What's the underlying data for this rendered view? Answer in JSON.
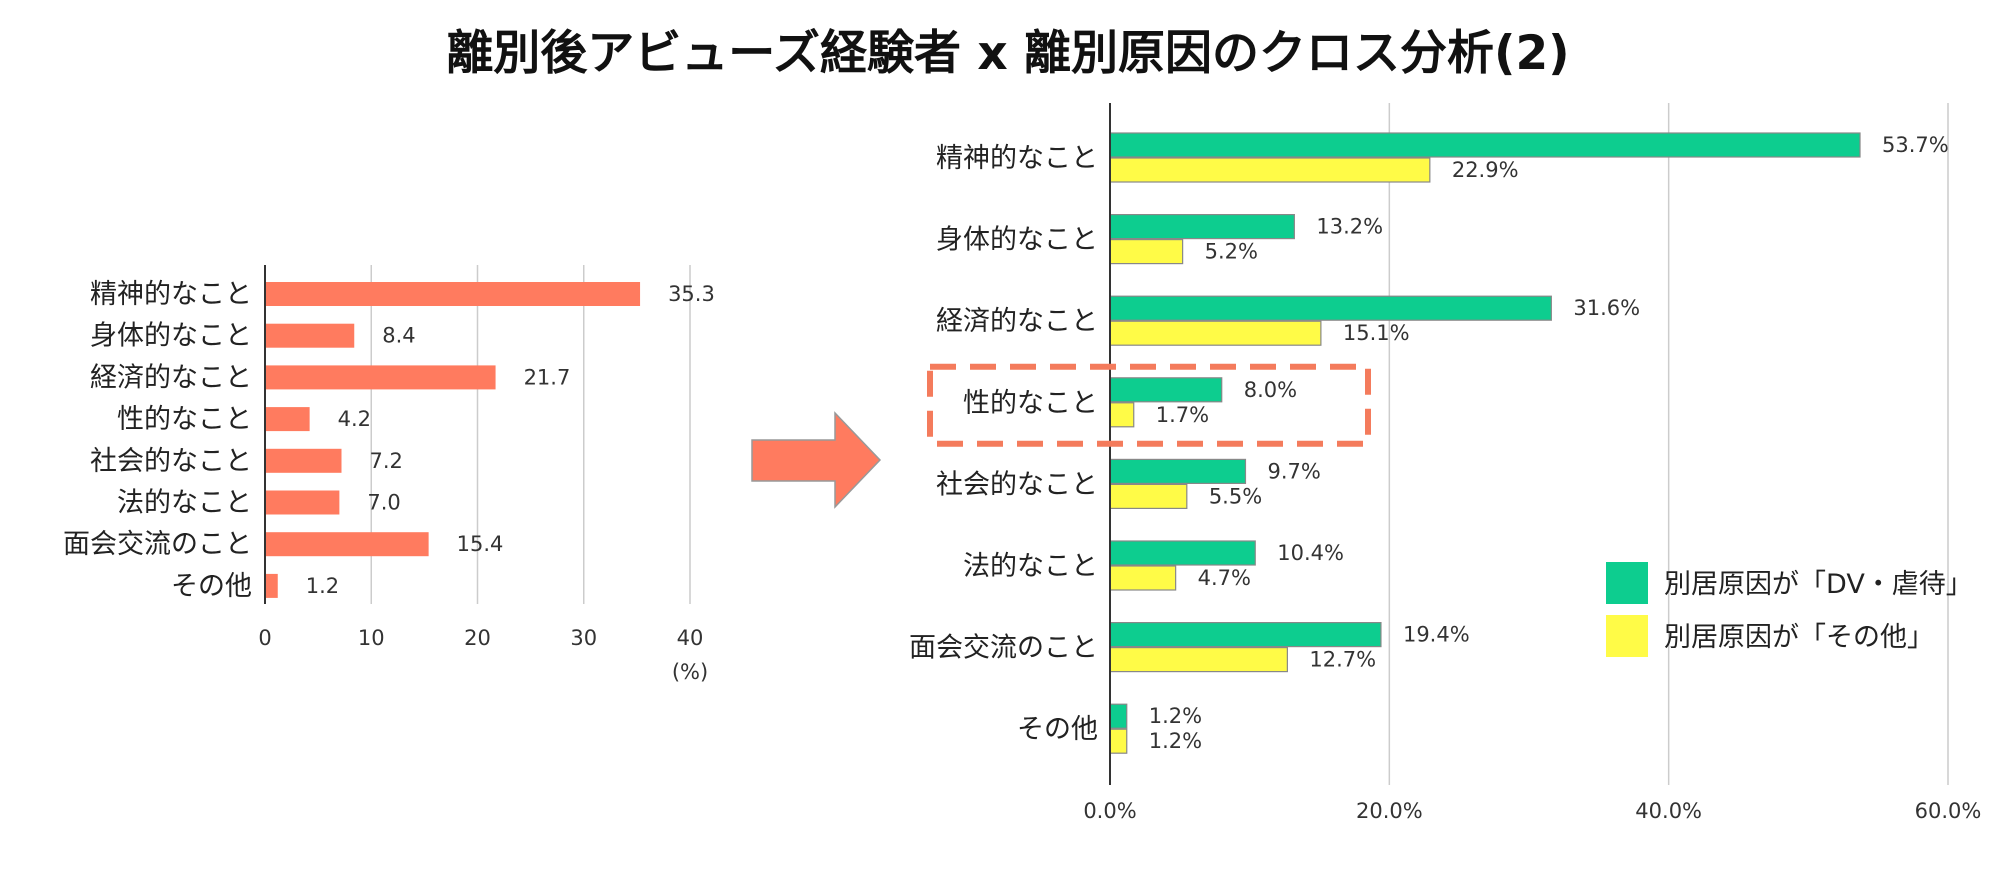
{
  "title": "離別後アビューズ経験者 x 離別原因のクロス分析(2)",
  "colors": {
    "left_bar": "#FF7B5F",
    "dv_series": "#0DCD8F",
    "other_series": "#FFFB47",
    "grid": "#CCCCCC",
    "highlight": "#F47B5C"
  },
  "chart_data": [
    {
      "type": "bar",
      "orientation": "horizontal",
      "title": "",
      "categories": [
        "精神的なこと",
        "身体的なこと",
        "経済的なこと",
        "性的なこと",
        "社会的なこと",
        "法的なこと",
        "面会交流のこと",
        "その他"
      ],
      "values": [
        35.3,
        8.4,
        21.7,
        4.2,
        7.2,
        7.0,
        15.4,
        1.2
      ],
      "value_labels": [
        "35.3",
        "8.4",
        "21.7",
        "4.2",
        "7.2",
        "7.0",
        "15.4",
        "1.2"
      ],
      "xlim": [
        0,
        40
      ],
      "xticks": [
        "0",
        "10",
        "20",
        "30",
        "40"
      ],
      "xlabel": "(%)",
      "grid": true
    },
    {
      "type": "bar",
      "orientation": "horizontal",
      "title": "",
      "categories": [
        "精神的なこと",
        "身体的なこと",
        "経済的なこと",
        "性的なこと",
        "社会的なこと",
        "法的なこと",
        "面会交流のこと",
        "その他"
      ],
      "series": [
        {
          "name": "別居原因が「DV・虐待」",
          "values": [
            53.7,
            13.2,
            31.6,
            8.0,
            9.7,
            10.4,
            19.4,
            1.2
          ],
          "value_labels": [
            "53.7%",
            "13.2%",
            "31.6%",
            "8.0%",
            "9.7%",
            "10.4%",
            "19.4%",
            "1.2%"
          ]
        },
        {
          "name": "別居原因が「その他」",
          "values": [
            22.9,
            5.2,
            15.1,
            1.7,
            5.5,
            4.7,
            12.7,
            1.2
          ],
          "value_labels": [
            "22.9%",
            "5.2%",
            "15.1%",
            "1.7%",
            "5.5%",
            "4.7%",
            "12.7%",
            "1.2%"
          ]
        }
      ],
      "xlim": [
        0,
        60
      ],
      "xticks": [
        "0.0%",
        "20.0%",
        "40.0%",
        "60.0%"
      ],
      "grid": true,
      "legend": "bottom-right",
      "highlighted_category": "性的なこと"
    }
  ]
}
